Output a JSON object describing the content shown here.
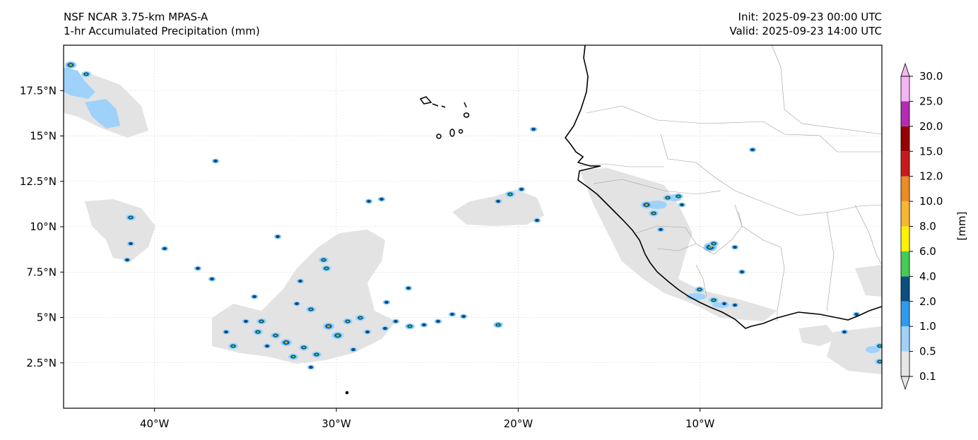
{
  "header": {
    "model": "NSF NCAR 3.75-km MPAS-A",
    "field": "1-hr Accumulated Precipitation (mm)",
    "init": "Init: 2025-09-23 00:00 UTC",
    "valid": "Valid: 2025-09-23 14:00 UTC"
  },
  "map": {
    "lon_range": [
      -45,
      0
    ],
    "lat_range": [
      0,
      20
    ],
    "lon_ticks": [
      {
        "value": -40,
        "label": "40°W"
      },
      {
        "value": -30,
        "label": "30°W"
      },
      {
        "value": -20,
        "label": "20°W"
      },
      {
        "value": -10,
        "label": "10°W"
      }
    ],
    "lat_ticks": [
      {
        "value": 17.5,
        "label": "17.5°N"
      },
      {
        "value": 15,
        "label": "15°N"
      },
      {
        "value": 12.5,
        "label": "12.5°N"
      },
      {
        "value": 10,
        "label": "10°N"
      },
      {
        "value": 7.5,
        "label": "7.5°N"
      },
      {
        "value": 5,
        "label": "5°N"
      },
      {
        "value": 2.5,
        "label": "2.5°N"
      }
    ]
  },
  "colorbar": {
    "unit_label": "[mm]",
    "levels": [
      "0.1",
      "0.5",
      "1.0",
      "2.0",
      "4.0",
      "6.0",
      "8.0",
      "10.0",
      "12.0",
      "15.0",
      "20.0",
      "25.0",
      "30.0"
    ],
    "colors": [
      "#e6e6e6",
      "#9fd2fb",
      "#2f9bf0",
      "#0b4f80",
      "#44cc55",
      "#fff200",
      "#f7b733",
      "#ec8c24",
      "#c91a1a",
      "#960000",
      "#b42bb4",
      "#f5b5f5"
    ]
  }
}
